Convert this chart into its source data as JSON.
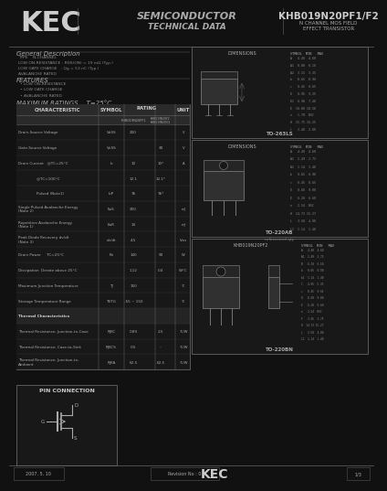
{
  "bg_color": "#111111",
  "page_bg": "#111111",
  "title_kec": "KEC",
  "title_semi": "SEMICONDUCTOR",
  "title_tech": "TECHNICAL DATA",
  "part_number": "KHB019N20PF1/F2",
  "part_sub1": "N CHANNEL MOS FIELD",
  "part_sub2": "EFFECT TRANSISTOR",
  "section_general": "General Description",
  "section_features": "FEATURES",
  "section_max": "MAXIMUM RATINGS    T=25°C",
  "section_pin": "PIN CONNECTION",
  "footer_date": "2007. 5. 10",
  "footer_rev": "Revision No : 0",
  "footer_page": "1/3",
  "diagram_labels": [
    "TO-263LS",
    "TO-220AB",
    "TO-220BN"
  ],
  "text_color": "#aaaaaa",
  "light_text": "#cccccc",
  "dim_text": "#888888",
  "border_color": "#666666",
  "header_bg": "#2a2a2a",
  "row_bg": "#1a1a1a",
  "thermal_bg": "#222222"
}
